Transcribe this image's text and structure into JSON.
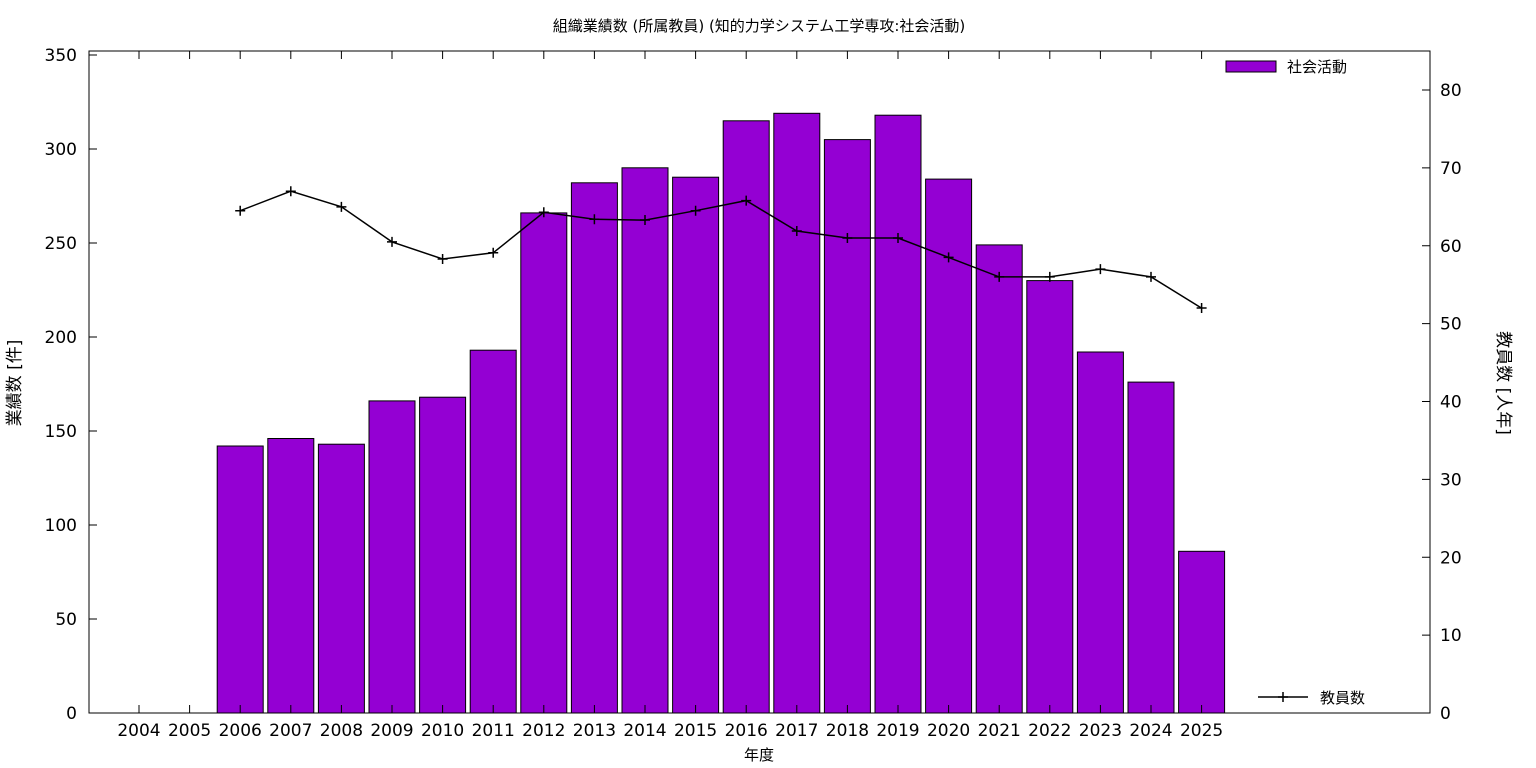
{
  "chart_data": {
    "type": "bar",
    "title": "組織業績数 (所属教員) (知的力学システム工学専攻:社会活動)",
    "xlabel": "年度",
    "ylabel": "業績数 [件]",
    "y2label": "教員数 [人年]",
    "categories": [
      "2004",
      "2005",
      "2006",
      "2007",
      "2008",
      "2009",
      "2010",
      "2011",
      "2012",
      "2013",
      "2014",
      "2015",
      "2016",
      "2017",
      "2018",
      "2019",
      "2020",
      "2021",
      "2022",
      "2023",
      "2024",
      "2025"
    ],
    "ylim": [
      0,
      350
    ],
    "y2lim": [
      0,
      85
    ],
    "yticks": [
      0,
      50,
      100,
      150,
      200,
      250,
      300,
      350
    ],
    "y2ticks": [
      0,
      10,
      20,
      30,
      40,
      50,
      60,
      70,
      80
    ],
    "series": [
      {
        "name": "社会活動",
        "type": "bar",
        "axis": "left",
        "color": "#9400d3",
        "values": [
          null,
          null,
          142,
          146,
          143,
          166,
          168,
          193,
          266,
          282,
          290,
          285,
          315,
          319,
          305,
          318,
          284,
          249,
          230,
          192,
          176,
          86
        ]
      },
      {
        "name": "教員数",
        "type": "line",
        "axis": "right",
        "color": "#000000",
        "values": [
          null,
          null,
          64.5,
          67,
          65,
          60.5,
          58.3,
          59.1,
          64.3,
          63.4,
          63.3,
          64.5,
          65.8,
          61.9,
          61,
          61,
          58.5,
          56,
          56,
          57,
          56,
          52
        ]
      }
    ],
    "legend": "top-right (bars), bottom-right (line)",
    "grid": false
  }
}
